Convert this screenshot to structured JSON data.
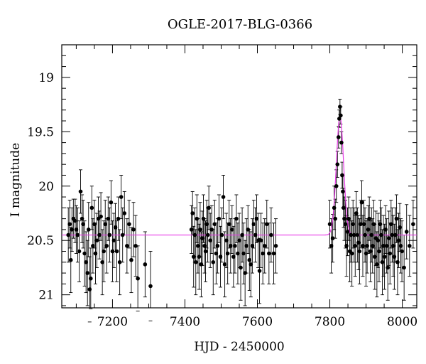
{
  "chart_data": {
    "type": "scatter",
    "title": "OGLE-2017-BLG-0366",
    "xlabel": "HJD - 2450000",
    "ylabel": "I magnitude",
    "xlim": [
      7060,
      8040
    ],
    "ylim": [
      21.12,
      18.7
    ],
    "y_inverted": true,
    "x_ticks": [
      7200,
      7400,
      7600,
      7800,
      8000
    ],
    "y_ticks": [
      19,
      19.5,
      20,
      20.5,
      21
    ],
    "grid": false,
    "colors": {
      "data": "#000000",
      "model": "#e63ae6"
    },
    "model": {
      "baseline": 20.45,
      "peak_x": 7828,
      "peak_mag": 19.36,
      "tE": 10
    },
    "series": [
      {
        "values": [
          [
            7078,
            20.45,
            0.25
          ],
          [
            7082,
            20.35,
            0.22
          ],
          [
            7085,
            20.68,
            0.3
          ],
          [
            7088,
            20.4,
            0.2
          ],
          [
            7092,
            20.3,
            0.18
          ],
          [
            7097,
            20.32,
            0.2
          ],
          [
            7100,
            20.4,
            0.22
          ],
          [
            7104,
            20.45,
            0.25
          ],
          [
            7108,
            20.6,
            0.28
          ],
          [
            7112,
            20.05,
            0.2
          ],
          [
            7116,
            20.3,
            0.22
          ],
          [
            7119,
            20.35,
            0.22
          ],
          [
            7123,
            20.62,
            0.3
          ],
          [
            7127,
            20.7,
            0.28
          ],
          [
            7131,
            20.8,
            0.3
          ],
          [
            7134,
            20.4,
            0.25
          ],
          [
            7137,
            20.95,
            0.3
          ],
          [
            7140,
            20.85,
            0.28
          ],
          [
            7143,
            20.2,
            0.2
          ],
          [
            7146,
            20.55,
            0.25
          ],
          [
            7150,
            20.35,
            0.22
          ],
          [
            7153,
            20.62,
            0.28
          ],
          [
            7157,
            20.5,
            0.25
          ],
          [
            7161,
            20.3,
            0.2
          ],
          [
            7164,
            20.45,
            0.22
          ],
          [
            7168,
            20.28,
            0.22
          ],
          [
            7172,
            20.7,
            0.3
          ],
          [
            7176,
            20.6,
            0.28
          ],
          [
            7180,
            20.35,
            0.22
          ],
          [
            7184,
            20.55,
            0.25
          ],
          [
            7188,
            20.3,
            0.2
          ],
          [
            7192,
            20.45,
            0.25
          ],
          [
            7196,
            20.15,
            0.2
          ],
          [
            7200,
            20.6,
            0.28
          ],
          [
            7204,
            20.5,
            0.25
          ],
          [
            7208,
            20.38,
            0.22
          ],
          [
            7212,
            20.6,
            0.28
          ],
          [
            7216,
            20.3,
            0.2
          ],
          [
            7220,
            20.7,
            0.3
          ],
          [
            7224,
            20.1,
            0.2
          ],
          [
            7228,
            20.45,
            0.25
          ],
          [
            7233,
            20.25,
            0.2
          ],
          [
            7240,
            20.55,
            0.25
          ],
          [
            7246,
            20.35,
            0.22
          ],
          [
            7252,
            20.68,
            0.3
          ],
          [
            7258,
            20.4,
            0.25
          ],
          [
            7264,
            20.55,
            0.28
          ],
          [
            7270,
            20.85,
            0.3
          ],
          [
            7290,
            20.72,
            0.3
          ],
          [
            7305,
            20.92,
            0.32
          ],
          [
            7418,
            20.4,
            0.22
          ],
          [
            7421,
            20.25,
            0.2
          ],
          [
            7424,
            20.65,
            0.28
          ],
          [
            7427,
            20.45,
            0.25
          ],
          [
            7430,
            20.7,
            0.3
          ],
          [
            7433,
            20.3,
            0.22
          ],
          [
            7436,
            20.55,
            0.25
          ],
          [
            7439,
            20.65,
            0.3
          ],
          [
            7442,
            20.4,
            0.25
          ],
          [
            7445,
            20.72,
            0.3
          ],
          [
            7448,
            20.48,
            0.25
          ],
          [
            7451,
            20.3,
            0.22
          ],
          [
            7454,
            20.55,
            0.25
          ],
          [
            7457,
            20.6,
            0.28
          ],
          [
            7460,
            20.35,
            0.22
          ],
          [
            7463,
            20.45,
            0.25
          ],
          [
            7466,
            20.2,
            0.2
          ],
          [
            7470,
            20.5,
            0.25
          ],
          [
            7474,
            20.4,
            0.22
          ],
          [
            7478,
            20.7,
            0.3
          ],
          [
            7482,
            20.35,
            0.22
          ],
          [
            7486,
            20.62,
            0.28
          ],
          [
            7490,
            20.55,
            0.25
          ],
          [
            7494,
            20.3,
            0.22
          ],
          [
            7498,
            20.65,
            0.28
          ],
          [
            7502,
            20.45,
            0.25
          ],
          [
            7506,
            20.1,
            0.2
          ],
          [
            7510,
            20.72,
            0.3
          ],
          [
            7514,
            20.5,
            0.25
          ],
          [
            7518,
            20.62,
            0.28
          ],
          [
            7522,
            20.35,
            0.22
          ],
          [
            7526,
            20.55,
            0.25
          ],
          [
            7530,
            20.4,
            0.22
          ],
          [
            7534,
            20.65,
            0.28
          ],
          [
            7538,
            20.55,
            0.25
          ],
          [
            7542,
            20.3,
            0.22
          ],
          [
            7546,
            20.62,
            0.28
          ],
          [
            7550,
            20.5,
            0.25
          ],
          [
            7554,
            20.75,
            0.3
          ],
          [
            7558,
            20.45,
            0.25
          ],
          [
            7562,
            20.62,
            0.28
          ],
          [
            7566,
            20.8,
            0.3
          ],
          [
            7570,
            20.55,
            0.25
          ],
          [
            7574,
            20.4,
            0.22
          ],
          [
            7578,
            20.68,
            0.28
          ],
          [
            7582,
            20.72,
            0.3
          ],
          [
            7586,
            20.55,
            0.25
          ],
          [
            7590,
            20.35,
            0.22
          ],
          [
            7594,
            20.45,
            0.25
          ],
          [
            7598,
            20.3,
            0.22
          ],
          [
            7602,
            20.5,
            0.25
          ],
          [
            7606,
            20.78,
            0.3
          ],
          [
            7610,
            20.5,
            0.25
          ],
          [
            7615,
            20.62,
            0.28
          ],
          [
            7620,
            20.55,
            0.25
          ],
          [
            7626,
            20.35,
            0.22
          ],
          [
            7632,
            20.62,
            0.28
          ],
          [
            7638,
            20.45,
            0.25
          ],
          [
            7645,
            20.62,
            0.28
          ],
          [
            7651,
            20.55,
            0.25
          ],
          [
            7800,
            20.35,
            0.22
          ],
          [
            7804,
            20.55,
            0.25
          ],
          [
            7808,
            20.48,
            0.22
          ],
          [
            7812,
            20.2,
            0.2
          ],
          [
            7815,
            20.3,
            0.18
          ],
          [
            7818,
            20.0,
            0.15
          ],
          [
            7821,
            19.8,
            0.12
          ],
          [
            7824,
            19.55,
            0.1
          ],
          [
            7826,
            19.38,
            0.08
          ],
          [
            7828,
            19.27,
            0.07
          ],
          [
            7830,
            19.35,
            0.08
          ],
          [
            7832,
            19.6,
            0.1
          ],
          [
            7834,
            19.9,
            0.12
          ],
          [
            7836,
            20.05,
            0.15
          ],
          [
            7838,
            20.2,
            0.18
          ],
          [
            7840,
            20.3,
            0.2
          ],
          [
            7843,
            20.35,
            0.22
          ],
          [
            7846,
            20.55,
            0.28
          ],
          [
            7849,
            20.42,
            0.22
          ],
          [
            7852,
            20.3,
            0.2
          ],
          [
            7855,
            20.6,
            0.28
          ],
          [
            7858,
            20.45,
            0.25
          ],
          [
            7861,
            20.62,
            0.3
          ],
          [
            7864,
            20.35,
            0.22
          ],
          [
            7867,
            20.45,
            0.25
          ],
          [
            7870,
            20.55,
            0.28
          ],
          [
            7873,
            20.25,
            0.2
          ],
          [
            7876,
            20.45,
            0.25
          ],
          [
            7879,
            20.52,
            0.25
          ],
          [
            7882,
            20.6,
            0.3
          ],
          [
            7885,
            20.35,
            0.22
          ],
          [
            7888,
            20.15,
            0.2
          ],
          [
            7891,
            20.55,
            0.28
          ],
          [
            7894,
            20.35,
            0.22
          ],
          [
            7897,
            20.45,
            0.25
          ],
          [
            7900,
            20.62,
            0.3
          ],
          [
            7903,
            20.55,
            0.25
          ],
          [
            7906,
            20.4,
            0.22
          ],
          [
            7909,
            20.3,
            0.2
          ],
          [
            7912,
            20.6,
            0.28
          ],
          [
            7915,
            20.45,
            0.25
          ],
          [
            7918,
            20.55,
            0.25
          ],
          [
            7921,
            20.35,
            0.22
          ],
          [
            7924,
            20.65,
            0.3
          ],
          [
            7927,
            20.48,
            0.25
          ],
          [
            7930,
            20.72,
            0.3
          ],
          [
            7933,
            20.5,
            0.25
          ],
          [
            7936,
            20.6,
            0.28
          ],
          [
            7939,
            20.35,
            0.22
          ],
          [
            7942,
            20.45,
            0.25
          ],
          [
            7945,
            20.7,
            0.3
          ],
          [
            7948,
            20.55,
            0.28
          ],
          [
            7951,
            20.65,
            0.3
          ],
          [
            7954,
            20.4,
            0.22
          ],
          [
            7957,
            20.55,
            0.25
          ],
          [
            7960,
            20.75,
            0.3
          ],
          [
            7963,
            20.48,
            0.25
          ],
          [
            7966,
            20.62,
            0.28
          ],
          [
            7969,
            20.35,
            0.22
          ],
          [
            7972,
            20.45,
            0.25
          ],
          [
            7975,
            20.55,
            0.28
          ],
          [
            7978,
            20.65,
            0.3
          ],
          [
            7981,
            20.45,
            0.25
          ],
          [
            7984,
            20.3,
            0.22
          ],
          [
            7987,
            20.7,
            0.3
          ],
          [
            7990,
            20.5,
            0.25
          ],
          [
            7993,
            20.38,
            0.22
          ],
          [
            7996,
            20.55,
            0.25
          ],
          [
            7999,
            20.6,
            0.28
          ],
          [
            8005,
            20.75,
            0.3
          ],
          [
            8012,
            20.42,
            0.25
          ],
          [
            8020,
            20.55,
            0.28
          ],
          [
            8030,
            20.35,
            0.22
          ]
        ]
      }
    ]
  }
}
